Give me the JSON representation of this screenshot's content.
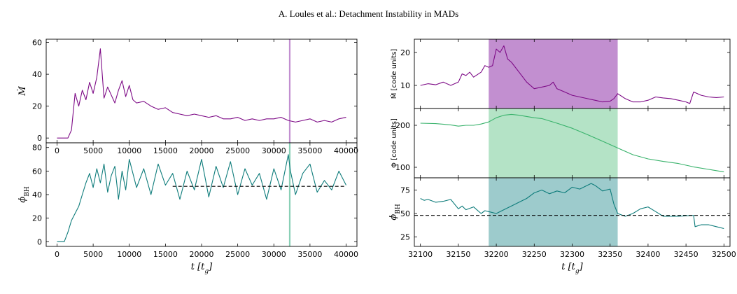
{
  "header": {
    "running_title": "A. Loules et al.: Detachment Instability in MADs"
  },
  "colors": {
    "mdot": "#7d0a86",
    "phi": "#38b26b",
    "phibh": "#0e7c7b",
    "band_mdot": "#c28fd0",
    "band_phi": "#b4e3c6",
    "band_phibh": "#9dcbcc",
    "vline_top": "#c28fd0",
    "vline_bottom": "#8ad0b6"
  },
  "chart_data": [
    {
      "type": "line",
      "panel": "left-top",
      "ylabel": "Ṁ",
      "ylim": [
        -3,
        62
      ],
      "xlim": [
        -1500,
        41500
      ],
      "yticks": [
        0,
        20,
        40,
        60
      ],
      "xticks": [
        0,
        5000,
        10000,
        15000,
        20000,
        25000,
        30000,
        35000,
        40000
      ],
      "x": [
        0,
        1500,
        2000,
        2500,
        3000,
        3500,
        4000,
        4500,
        5000,
        5500,
        6000,
        6500,
        7000,
        7500,
        8000,
        8500,
        9000,
        9500,
        10000,
        10500,
        11000,
        12000,
        13000,
        14000,
        15000,
        16000,
        17000,
        18000,
        19000,
        20000,
        21000,
        22000,
        23000,
        24000,
        25000,
        26000,
        27000,
        28000,
        29000,
        30000,
        31000,
        32000,
        33000,
        34000,
        35000,
        36000,
        37000,
        38000,
        39000,
        40000
      ],
      "y": [
        0,
        0,
        5,
        28,
        20,
        30,
        24,
        35,
        28,
        38,
        56,
        25,
        32,
        27,
        22,
        30,
        36,
        26,
        33,
        24,
        22,
        23,
        20,
        18,
        19,
        16,
        15,
        14,
        15,
        14,
        13,
        14,
        12,
        12,
        13,
        11,
        12,
        11,
        12,
        12,
        13,
        11,
        10,
        11,
        12,
        10,
        11,
        10,
        12,
        13
      ],
      "vline_x": 32200,
      "series": [
        {
          "values_key": "y"
        }
      ]
    },
    {
      "type": "line",
      "panel": "left-bottom",
      "ylabel": "ϕ_BH",
      "xlabel": "t [t_g]",
      "ylim": [
        -4,
        84
      ],
      "xlim": [
        -1500,
        41500
      ],
      "yticks": [
        0,
        20,
        40,
        60,
        80
      ],
      "xticks": [
        0,
        5000,
        10000,
        15000,
        20000,
        25000,
        30000,
        35000,
        40000
      ],
      "x": [
        0,
        1000,
        1500,
        2000,
        2500,
        3000,
        3500,
        4000,
        4500,
        5000,
        5500,
        6000,
        6500,
        7000,
        7500,
        8000,
        8500,
        9000,
        9500,
        10000,
        11000,
        12000,
        13000,
        14000,
        15000,
        16000,
        17000,
        18000,
        19000,
        20000,
        21000,
        22000,
        23000,
        24000,
        25000,
        26000,
        27000,
        28000,
        29000,
        30000,
        31000,
        32000,
        32300,
        33000,
        34000,
        35000,
        36000,
        37000,
        38000,
        39000,
        40000
      ],
      "y": [
        0,
        0,
        8,
        18,
        24,
        30,
        40,
        50,
        58,
        46,
        62,
        50,
        66,
        42,
        56,
        64,
        36,
        60,
        44,
        70,
        46,
        62,
        40,
        66,
        48,
        58,
        36,
        60,
        44,
        70,
        38,
        64,
        46,
        68,
        40,
        62,
        48,
        58,
        36,
        62,
        44,
        74,
        60,
        40,
        58,
        66,
        42,
        52,
        44,
        60,
        48
      ],
      "hline_y": 47,
      "hline_x_range": [
        16000,
        40000
      ],
      "vline_x": 32200
    },
    {
      "type": "line",
      "panel": "right-top",
      "ylabel": "Ṁ [code units]",
      "ylim": [
        3,
        24
      ],
      "xlim": [
        32092,
        32508
      ],
      "yticks": [
        10,
        20
      ],
      "band": [
        32190,
        32360
      ],
      "x": [
        32100,
        32110,
        32120,
        32130,
        32140,
        32150,
        32155,
        32160,
        32165,
        32170,
        32180,
        32185,
        32190,
        32195,
        32200,
        32205,
        32210,
        32215,
        32220,
        32230,
        32240,
        32250,
        32260,
        32270,
        32275,
        32280,
        32290,
        32300,
        32310,
        32320,
        32330,
        32340,
        32350,
        32355,
        32360,
        32370,
        32380,
        32390,
        32400,
        32410,
        32420,
        32430,
        32440,
        32450,
        32455,
        32460,
        32470,
        32480,
        32490,
        32500
      ],
      "y": [
        10,
        10.5,
        10.2,
        11,
        10,
        11,
        13.5,
        13,
        14,
        12.5,
        14,
        16,
        15.5,
        16,
        21,
        20,
        22,
        18,
        17,
        14,
        11,
        9,
        9.5,
        10,
        11,
        9,
        8,
        7,
        6.5,
        6,
        5.5,
        5,
        5.2,
        6,
        7.5,
        6,
        5,
        5,
        5.5,
        6.5,
        6.2,
        6,
        5.5,
        5,
        4.5,
        8,
        7,
        6.5,
        6.3,
        6.5
      ]
    },
    {
      "type": "line",
      "panel": "right-middle",
      "ylabel": "Φ [code units]",
      "ylim": [
        75,
        240
      ],
      "xlim": [
        32092,
        32508
      ],
      "yticks": [
        100,
        200
      ],
      "band": [
        32190,
        32360
      ],
      "x": [
        32100,
        32120,
        32140,
        32150,
        32160,
        32170,
        32180,
        32190,
        32200,
        32210,
        32220,
        32230,
        32240,
        32250,
        32260,
        32280,
        32300,
        32320,
        32340,
        32360,
        32380,
        32400,
        32420,
        32440,
        32460,
        32480,
        32500
      ],
      "y": [
        205,
        204,
        201,
        198,
        200,
        200,
        203,
        208,
        218,
        224,
        226,
        224,
        221,
        218,
        216,
        205,
        193,
        178,
        162,
        146,
        130,
        120,
        114,
        109,
        101,
        95,
        89
      ]
    },
    {
      "type": "line",
      "panel": "right-bottom",
      "ylabel": "ϕ_BH",
      "xlabel": "t [t_g]",
      "ylim": [
        15,
        88
      ],
      "xlim": [
        32092,
        32508
      ],
      "yticks": [
        25,
        50,
        75
      ],
      "xticks": [
        32100,
        32150,
        32200,
        32250,
        32300,
        32350,
        32400,
        32450,
        32500
      ],
      "band": [
        32190,
        32360
      ],
      "hline_y": 48,
      "x": [
        32100,
        32105,
        32110,
        32120,
        32130,
        32140,
        32150,
        32155,
        32160,
        32170,
        32180,
        32185,
        32190,
        32200,
        32210,
        32220,
        32230,
        32240,
        32250,
        32260,
        32270,
        32280,
        32290,
        32300,
        32310,
        32320,
        32325,
        32330,
        32340,
        32350,
        32355,
        32360,
        32370,
        32380,
        32390,
        32400,
        32410,
        32420,
        32440,
        32460,
        32462,
        32470,
        32480,
        32490,
        32500
      ],
      "y": [
        66,
        64,
        65,
        62,
        63,
        65,
        55,
        58,
        54,
        57,
        50,
        53,
        52,
        50,
        54,
        58,
        62,
        66,
        72,
        75,
        71,
        74,
        72,
        78,
        76,
        80,
        82,
        80,
        74,
        76,
        60,
        50,
        47,
        50,
        55,
        57,
        52,
        47,
        47,
        48,
        36,
        38,
        38,
        36,
        34
      ]
    }
  ]
}
